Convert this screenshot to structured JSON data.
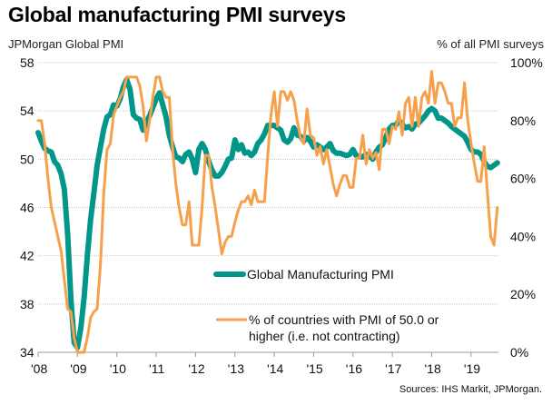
{
  "chart_data": {
    "type": "line",
    "title": "Global manufacturing PMI surveys",
    "left_axis_label": "JPMorgan Global PMI",
    "right_axis_label": "% of all PMI surveys",
    "source": "Sources: IHS Markit, JPMorgan.",
    "x_start": "2008-01",
    "x_frequency": "monthly",
    "x_tick_labels": [
      "'08",
      "'09",
      "'10",
      "'11",
      "'12",
      "'13",
      "'14",
      "'15",
      "'16",
      "'17",
      "'18",
      "'19"
    ],
    "left_ylim": [
      34,
      58
    ],
    "left_ticks": [
      "58",
      "54",
      "50",
      "46",
      "42",
      "38",
      "34"
    ],
    "right_ylim": [
      0,
      100
    ],
    "right_ticks": [
      "100%",
      "80%",
      "60%",
      "40%",
      "20%",
      "0%"
    ],
    "grid": true,
    "legend_position": "bottom-center",
    "colors": {
      "pmi": "#00968a",
      "share": "#f7a04b",
      "grid": "#c8c8c8",
      "axis": "#9a9a9a"
    },
    "series": [
      {
        "name": "Global Manufacturing PMI",
        "axis": "left",
        "values": [
          52.2,
          51.5,
          50.9,
          50.7,
          50.6,
          49.8,
          49.5,
          48.8,
          47.5,
          43.8,
          38.4,
          34.8,
          34.4,
          36.0,
          38.5,
          42.0,
          45.0,
          47.2,
          49.5,
          51.0,
          52.5,
          53.5,
          53.7,
          54.5,
          54.4,
          55.0,
          56.0,
          56.6,
          55.8,
          53.7,
          53.4,
          53.3,
          52.4,
          53.1,
          53.6,
          54.3,
          55.0,
          55.5,
          54.5,
          53.5,
          52.0,
          51.0,
          50.2,
          50.1,
          49.8,
          50.4,
          50.6,
          50.0,
          48.9,
          50.8,
          51.3,
          50.8,
          49.8,
          49.1,
          48.6,
          48.6,
          48.9,
          49.4,
          50.0,
          50.1,
          51.6,
          50.8,
          51.2,
          50.5,
          50.6,
          50.3,
          50.6,
          51.3,
          51.6,
          52.1,
          52.8,
          52.8,
          52.8,
          52.6,
          52.4,
          51.6,
          51.4,
          51.7,
          52.6,
          52.0,
          51.9,
          51.5,
          51.8,
          51.5,
          51.0,
          51.2,
          51.0,
          50.8,
          51.0,
          51.3,
          50.7,
          50.5,
          50.5,
          50.4,
          50.3,
          50.4,
          50.8,
          50.3,
          50.2,
          50.2,
          50.4,
          50.3,
          50.0,
          50.6,
          51.0,
          51.2,
          51.8,
          52.5,
          52.8,
          52.8,
          53.2,
          52.9,
          52.6,
          52.7,
          52.5,
          52.9,
          53.0,
          53.3,
          53.6,
          54.0,
          54.2,
          54.0,
          53.4,
          53.4,
          53.2,
          53.0,
          52.7,
          52.5,
          52.3,
          52.1,
          51.9,
          51.4,
          50.8,
          50.6,
          50.6,
          50.4,
          49.8,
          49.4,
          49.3,
          49.5,
          49.7
        ]
      },
      {
        "name": "% of countries with PMI of 50.0 or higher (i.e. not contracting)",
        "axis": "right",
        "values": [
          80,
          80,
          72,
          60,
          50,
          45,
          40,
          35,
          25,
          15,
          14,
          5,
          0,
          0,
          0,
          5,
          12,
          14,
          15,
          30,
          55,
          70,
          72,
          82,
          85,
          88,
          90,
          95,
          95,
          95,
          95,
          92,
          85,
          73,
          80,
          88,
          95,
          95,
          90,
          88,
          88,
          70,
          58,
          50,
          44,
          44,
          52,
          37,
          37,
          37,
          50,
          68,
          68,
          57,
          50,
          42,
          34,
          38,
          40,
          40,
          45,
          49,
          52,
          52,
          54,
          51,
          56,
          52,
          52,
          52,
          68,
          82,
          90,
          78,
          90,
          90,
          87,
          90,
          87,
          80,
          74,
          72,
          84,
          75,
          74,
          68,
          71,
          65,
          70,
          64,
          58,
          54,
          58,
          61,
          61,
          57,
          57,
          67,
          67,
          75,
          65,
          70,
          67,
          69,
          63,
          77,
          77,
          72,
          78,
          77,
          83,
          75,
          86,
          88,
          78,
          88,
          78,
          88,
          90,
          86,
          97,
          86,
          93,
          93,
          90,
          86,
          86,
          78,
          81,
          81,
          93,
          80,
          72,
          65,
          59,
          59,
          71,
          55,
          40,
          37,
          50
        ]
      }
    ],
    "legend": [
      {
        "label": "Global Manufacturing PMI"
      },
      {
        "label_line1": "% of countries with PMI of 50.0 or",
        "label_line2": "higher (i.e. not contracting)"
      }
    ]
  }
}
